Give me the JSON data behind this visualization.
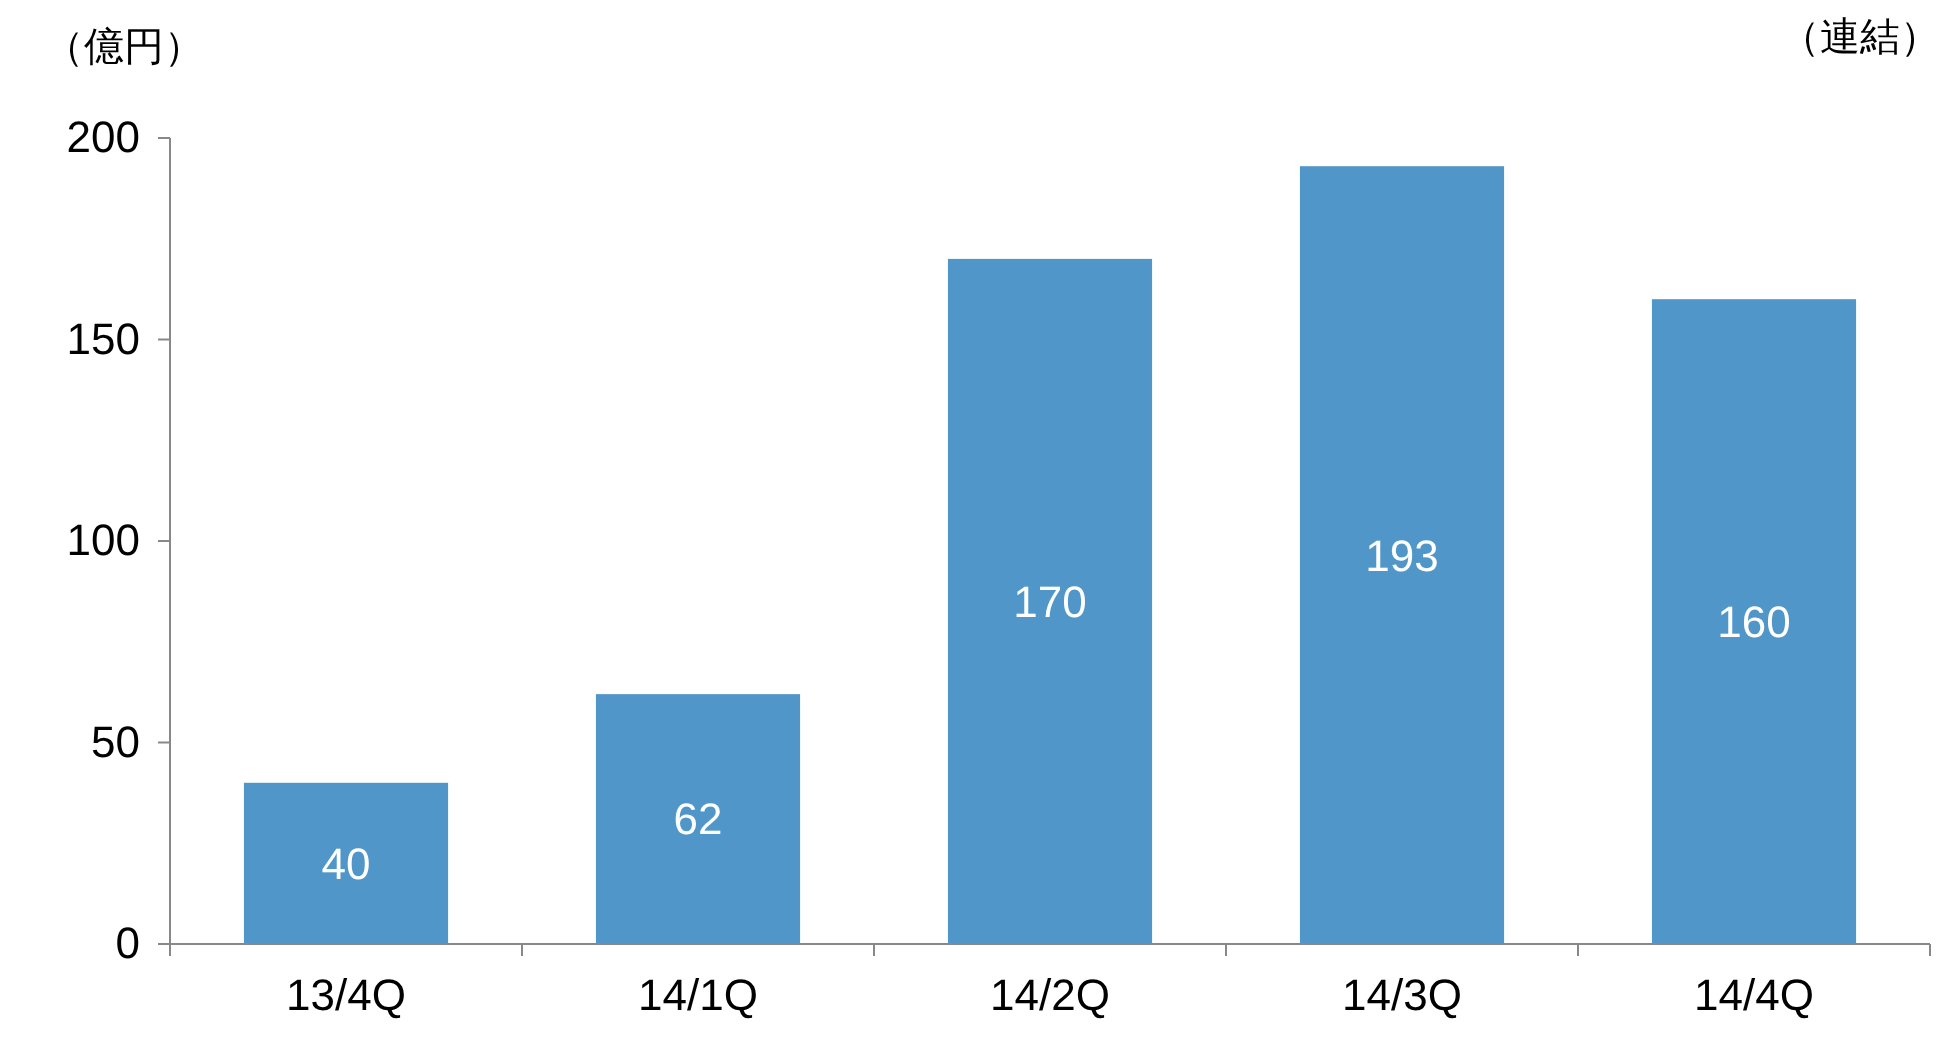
{
  "chart_data": {
    "type": "bar",
    "ylabel": "（億円）",
    "annotations": [
      "（連結）"
    ],
    "categories": [
      "13/4Q",
      "14/1Q",
      "14/2Q",
      "14/3Q",
      "14/4Q"
    ],
    "values": [
      40,
      62,
      170,
      193,
      160
    ],
    "color": "#5096c8",
    "ylim": [
      0,
      200
    ],
    "yticks": [
      0,
      50,
      100,
      150,
      200
    ],
    "data_labels": true,
    "grid": false
  }
}
